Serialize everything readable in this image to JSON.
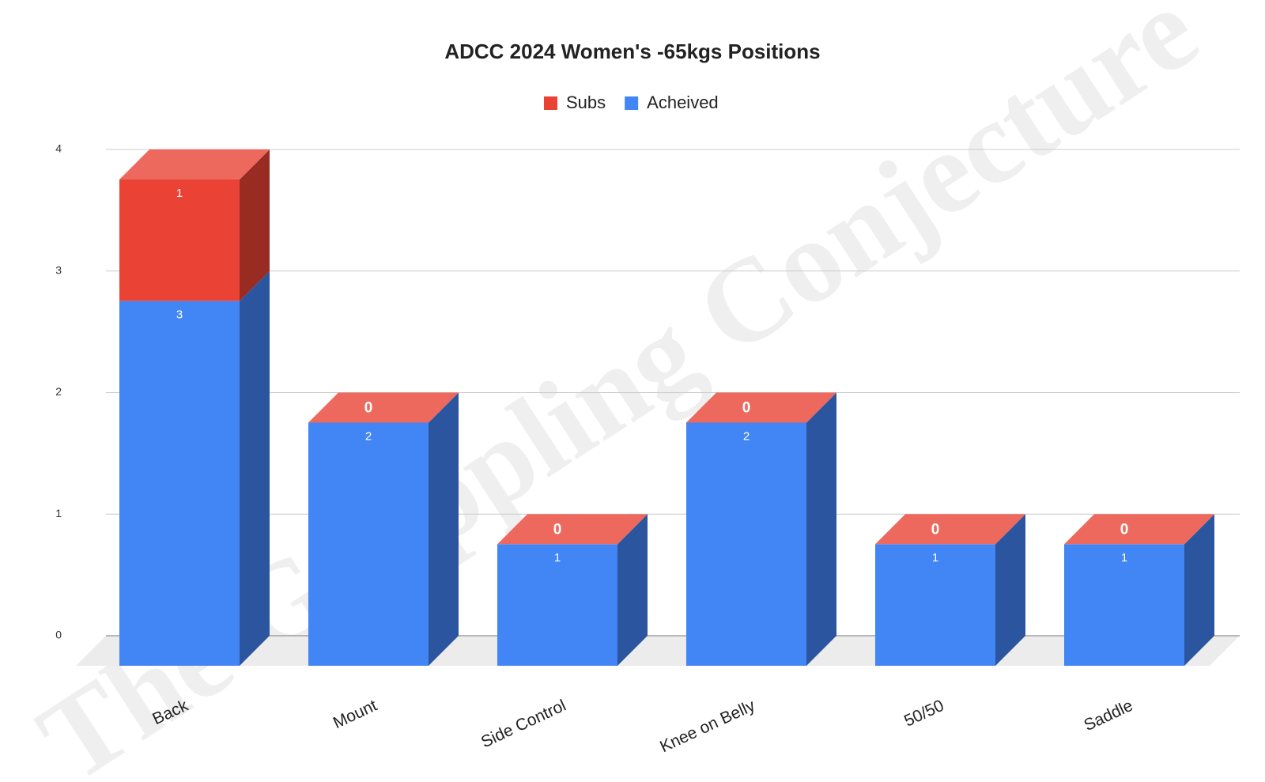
{
  "chart_data": {
    "type": "bar3d_stacked",
    "title": "ADCC 2024 Women's -65kgs Positions",
    "watermark": "The Grappling Conjecture",
    "categories": [
      "Back",
      "Mount",
      "Side Control",
      "Knee on Belly",
      "50/50",
      "Saddle"
    ],
    "series": [
      {
        "name": "Subs",
        "color": "#ea4335",
        "values": [
          1,
          0,
          0,
          0,
          0,
          0
        ]
      },
      {
        "name": "Acheived",
        "color": "#4285f4",
        "values": [
          3,
          2,
          1,
          2,
          1,
          1
        ]
      }
    ],
    "stack_order": [
      "Acheived",
      "Subs"
    ],
    "ylim": [
      0,
      4
    ],
    "yticks": [
      0,
      1,
      2,
      3,
      4
    ],
    "grid": true,
    "legend": "top"
  }
}
